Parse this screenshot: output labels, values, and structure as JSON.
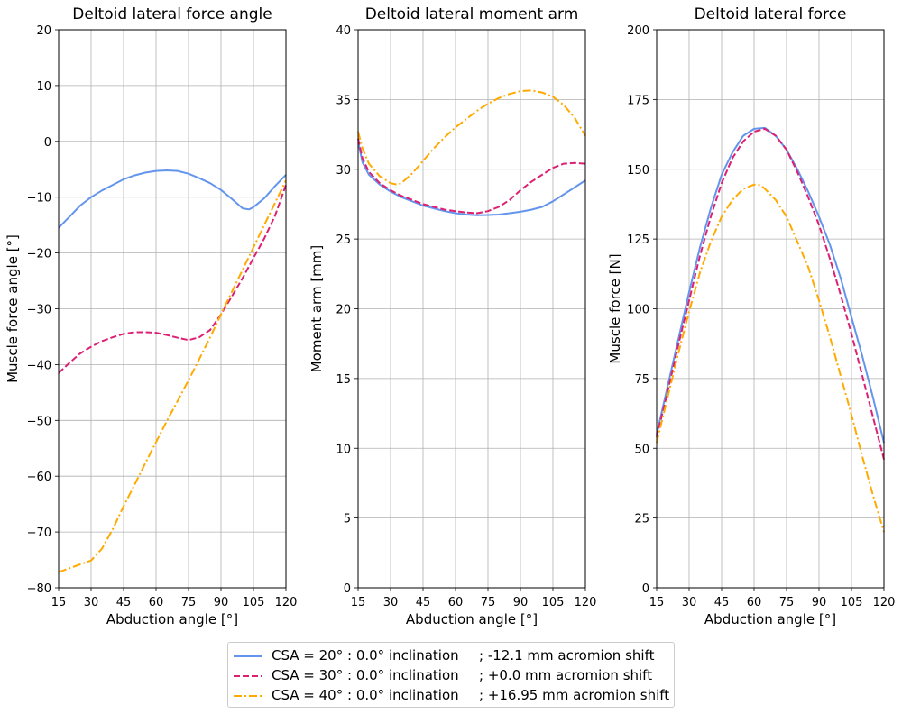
{
  "chart_data": [
    {
      "type": "line",
      "title": "Deltoid lateral force angle",
      "xlabel": "Abduction angle [°]",
      "ylabel": "Muscle force angle [°]",
      "xlim": [
        15,
        120
      ],
      "ylim": [
        -80,
        20
      ],
      "xticks": [
        "15",
        "30",
        "45",
        "60",
        "75",
        "90",
        "105",
        "120"
      ],
      "yticks": [
        "20",
        "10",
        "0",
        "−10",
        "−20",
        "−30",
        "−40",
        "−50",
        "−60",
        "−70",
        "−80"
      ],
      "grid": true,
      "series": [
        {
          "name": "CSA = 20° : 0.0° inclination     ; -12.1 mm acromion shift",
          "x": [
            15,
            20,
            25,
            30,
            35,
            40,
            45,
            50,
            55,
            60,
            65,
            70,
            75,
            80,
            85,
            90,
            95,
            100,
            103,
            105,
            110,
            115,
            120
          ],
          "y": [
            -15.5,
            -13.5,
            -11.5,
            -10,
            -8.8,
            -7.8,
            -6.8,
            -6.1,
            -5.6,
            -5.3,
            -5.2,
            -5.3,
            -5.8,
            -6.6,
            -7.5,
            -8.7,
            -10.3,
            -12,
            -12.2,
            -11.8,
            -10.2,
            -8,
            -6
          ]
        },
        {
          "name": "CSA = 30° : 0.0° inclination     ; +0.0 mm acromion shift",
          "x": [
            15,
            20,
            25,
            30,
            35,
            40,
            45,
            50,
            55,
            60,
            65,
            70,
            75,
            80,
            85,
            90,
            95,
            100,
            105,
            110,
            115,
            120
          ],
          "y": [
            -41.5,
            -39.7,
            -38,
            -36.8,
            -35.8,
            -35.1,
            -34.5,
            -34.2,
            -34.2,
            -34.3,
            -34.7,
            -35.2,
            -35.6,
            -35.1,
            -33.8,
            -31,
            -27.8,
            -24.5,
            -20.9,
            -17.4,
            -13.3,
            -7.8
          ]
        },
        {
          "name": "CSA = 40° : 0.0° inclination     ; +16.95 mm acromion shift",
          "x": [
            15,
            20,
            25,
            30,
            35,
            40,
            45,
            50,
            55,
            60,
            65,
            70,
            75,
            80,
            85,
            90,
            95,
            100,
            105,
            110,
            115,
            120
          ],
          "y": [
            -77.2,
            -76.5,
            -75.8,
            -75.1,
            -73,
            -69.5,
            -65.4,
            -61.6,
            -57.7,
            -53.9,
            -50.1,
            -46.5,
            -42.8,
            -39,
            -35.1,
            -31,
            -27,
            -23,
            -19,
            -15,
            -11,
            -7
          ]
        }
      ]
    },
    {
      "type": "line",
      "title": "Deltoid lateral moment arm",
      "xlabel": "Abduction angle [°]",
      "ylabel": "Moment arm [mm]",
      "xlim": [
        15,
        120
      ],
      "ylim": [
        0,
        40
      ],
      "xticks": [
        "15",
        "30",
        "45",
        "60",
        "75",
        "90",
        "105",
        "120"
      ],
      "yticks": [
        "40",
        "35",
        "30",
        "25",
        "20",
        "15",
        "10",
        "5",
        "0"
      ],
      "grid": true,
      "series": [
        {
          "name": "CSA = 20° : 0.0° inclination     ; -12.1 mm acromion shift",
          "x": [
            15,
            17,
            20,
            25,
            30,
            35,
            40,
            45,
            50,
            55,
            60,
            65,
            70,
            75,
            80,
            85,
            90,
            95,
            100,
            105,
            110,
            115,
            120
          ],
          "y": [
            32,
            30.5,
            29.6,
            28.9,
            28.4,
            28,
            27.7,
            27.4,
            27.2,
            27,
            26.85,
            26.75,
            26.7,
            26.72,
            26.75,
            26.85,
            26.95,
            27.1,
            27.3,
            27.7,
            28.2,
            28.7,
            29.2
          ]
        },
        {
          "name": "CSA = 30° : 0.0° inclination     ; +0.0 mm acromion shift",
          "x": [
            15,
            17,
            20,
            25,
            30,
            35,
            40,
            45,
            50,
            55,
            60,
            65,
            70,
            75,
            80,
            85,
            90,
            95,
            100,
            105,
            110,
            115,
            120
          ],
          "y": [
            32.2,
            30.8,
            29.8,
            29,
            28.5,
            28.1,
            27.8,
            27.5,
            27.3,
            27.1,
            27,
            26.9,
            26.85,
            27,
            27.3,
            27.8,
            28.5,
            29.1,
            29.6,
            30.1,
            30.4,
            30.45,
            30.4
          ]
        },
        {
          "name": "CSA = 40° : 0.0° inclination     ; +16.95 mm acromion shift",
          "x": [
            15,
            17,
            20,
            25,
            30,
            33,
            35,
            40,
            45,
            50,
            55,
            60,
            65,
            70,
            75,
            80,
            85,
            90,
            95,
            100,
            105,
            110,
            115,
            120
          ],
          "y": [
            32.7,
            31.5,
            30.4,
            29.5,
            29,
            28.9,
            29,
            29.7,
            30.6,
            31.5,
            32.3,
            33,
            33.6,
            34.2,
            34.7,
            35.1,
            35.4,
            35.6,
            35.65,
            35.5,
            35.2,
            34.6,
            33.7,
            32.4
          ]
        }
      ]
    },
    {
      "type": "line",
      "title": "Deltoid lateral force",
      "xlabel": "Abduction angle [°]",
      "ylabel": "Muscle force [N]",
      "xlim": [
        15,
        120
      ],
      "ylim": [
        0,
        200
      ],
      "xticks": [
        "15",
        "30",
        "45",
        "60",
        "75",
        "90",
        "105",
        "120"
      ],
      "yticks": [
        "200",
        "175",
        "150",
        "125",
        "100",
        "75",
        "50",
        "25",
        "0"
      ],
      "grid": true,
      "series": [
        {
          "name": "CSA = 20° : 0.0° inclination     ; -12.1 mm acromion shift",
          "x": [
            15,
            20,
            25,
            30,
            35,
            40,
            45,
            50,
            55,
            60,
            65,
            70,
            75,
            80,
            85,
            90,
            95,
            100,
            105,
            110,
            115,
            120
          ],
          "y": [
            55,
            72,
            89,
            106,
            122,
            136,
            148,
            156,
            162,
            164.5,
            164.8,
            162,
            157,
            150,
            142,
            133,
            123,
            111,
            97,
            83,
            68,
            52
          ]
        },
        {
          "name": "CSA = 30° : 0.0° inclination     ; +0.0 mm acromion shift",
          "x": [
            15,
            20,
            25,
            30,
            35,
            40,
            45,
            50,
            55,
            60,
            65,
            70,
            75,
            80,
            85,
            90,
            95,
            100,
            105,
            110,
            115,
            120
          ],
          "y": [
            54,
            70,
            87,
            103,
            119,
            133,
            145,
            154,
            160,
            163.5,
            164.5,
            162,
            157,
            149,
            140,
            130,
            118,
            105,
            91,
            76,
            61,
            46
          ]
        },
        {
          "name": "CSA = 40° : 0.0° inclination     ; +16.95 mm acromion shift",
          "x": [
            15,
            20,
            25,
            30,
            35,
            40,
            45,
            50,
            55,
            60,
            63,
            65,
            70,
            75,
            80,
            85,
            90,
            95,
            100,
            105,
            110,
            115,
            120
          ],
          "y": [
            52,
            68,
            84,
            99,
            113,
            124,
            133,
            139,
            143,
            144.5,
            144.3,
            143,
            139,
            133,
            124,
            115,
            103,
            90,
            76,
            62,
            47,
            33,
            20
          ]
        }
      ]
    }
  ],
  "legend": {
    "entries": [
      {
        "label": "CSA = 20° : 0.0° inclination",
        "shift": "; -12.1 mm acromion shift",
        "color": "#6495ED",
        "dash": "solid"
      },
      {
        "label": "CSA = 30° : 0.0° inclination",
        "shift": "; +0.0 mm acromion shift",
        "color": "#DC2173",
        "dash": "dashed"
      },
      {
        "label": "CSA = 40° : 0.0° inclination",
        "shift": "; +16.95 mm acromion shift",
        "color": "#FFAA00",
        "dash": "dashdot"
      }
    ]
  }
}
